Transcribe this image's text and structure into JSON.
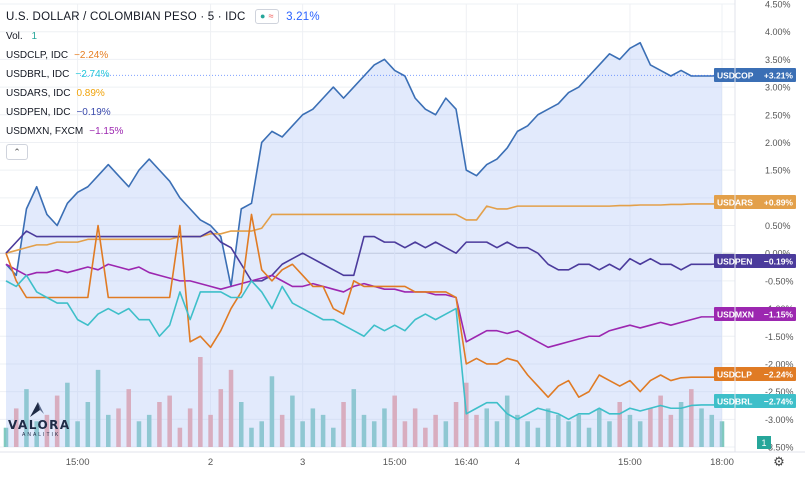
{
  "header": {
    "title": "U.S. DOLLAR / COLOMBIAN PESO · 5 · IDC",
    "change": "3.21%",
    "volume_label": "Vol.",
    "volume_value": "1"
  },
  "legend": [
    {
      "symbol": "USDCLP, IDC",
      "change": "−2.24%",
      "color": "#e67e22"
    },
    {
      "symbol": "USDBRL, IDC",
      "change": "−2.74%",
      "color": "#26c6da"
    },
    {
      "symbol": "USDARS, IDC",
      "change": "0.89%",
      "color": "#f0a30a"
    },
    {
      "symbol": "USDPEN, IDC",
      "change": "−0.19%",
      "color": "#3949ab"
    },
    {
      "symbol": "USDMXN, FXCM",
      "change": "−1.15%",
      "color": "#9c27b0"
    }
  ],
  "logo": {
    "brand": "VALORA",
    "sub": "ANALITIK"
  },
  "colors": {
    "usdcop": "#2962ff",
    "usdcop_line": "#3b6fb5",
    "usdclp": "#e07b24",
    "usdbrl": "#3ebfc9",
    "usdars": "#e3a04a",
    "usdpen": "#4b3b9c",
    "usdmxn": "#9c27b0",
    "vol_up": "#80c9bf",
    "vol_down": "#f0a1a1",
    "grid": "#eef0f4",
    "zero": "#c9ccd3"
  },
  "chart_data": {
    "type": "line",
    "title": "U.S. DOLLAR / COLOMBIAN PESO · 5 · IDC",
    "ylim": [
      -3.5,
      4.5
    ],
    "y_unit": "%",
    "y_ticks": [
      "4.50%",
      "4.00%",
      "3.50%",
      "3.00%",
      "2.50%",
      "2.00%",
      "1.50%",
      "1.00%",
      "0.50%",
      "0.00%",
      "-0.50%",
      "-1.00%",
      "-1.50%",
      "-2.00%",
      "-2.50%",
      "-3.00%",
      "-3.50%"
    ],
    "x_tick_labels": [
      "15:00",
      "2",
      "3",
      "15:00",
      "16:40",
      "4",
      "15:00",
      "18:00"
    ],
    "x": [
      0,
      1,
      2,
      3,
      4,
      5,
      6,
      7,
      8,
      9,
      10,
      11,
      12,
      13,
      14,
      15,
      16,
      17,
      18,
      19,
      20,
      21,
      22,
      23,
      24,
      25,
      26,
      27,
      28,
      29,
      30,
      31,
      32,
      33,
      34,
      35,
      36,
      37,
      38,
      39,
      40,
      41,
      42,
      43,
      44,
      45,
      46,
      47,
      48,
      49,
      50,
      51,
      52,
      53,
      54,
      55,
      56,
      57,
      58,
      59,
      60,
      61,
      62,
      63,
      64,
      65,
      66,
      67,
      68,
      69,
      70
    ],
    "series": [
      {
        "name": "USDCOP",
        "last_label": "+3.21%",
        "values": [
          -0.2,
          -0.4,
          0.8,
          1.2,
          0.7,
          0.5,
          0.9,
          1.1,
          1.2,
          1.4,
          1.6,
          1.4,
          1.2,
          1.5,
          1.7,
          1.5,
          1.3,
          1.0,
          0.8,
          0.6,
          0.5,
          0.3,
          -0.6,
          0.8,
          0.9,
          2.0,
          2.2,
          2.1,
          2.3,
          2.5,
          2.6,
          2.8,
          3.0,
          2.8,
          3.0,
          3.2,
          3.4,
          3.5,
          3.3,
          3.2,
          2.8,
          2.6,
          2.5,
          2.8,
          2.6,
          1.5,
          1.4,
          1.6,
          1.7,
          1.9,
          2.2,
          2.3,
          2.5,
          2.6,
          2.7,
          2.9,
          3.0,
          3.2,
          3.4,
          3.6,
          3.5,
          3.7,
          3.8,
          3.4,
          3.3,
          3.2,
          3.3,
          3.2,
          3.2,
          3.2,
          3.21
        ]
      },
      {
        "name": "USDARS",
        "last_label": "+0.89%",
        "values": [
          0.0,
          0.05,
          0.1,
          0.15,
          0.15,
          0.2,
          0.2,
          0.2,
          0.25,
          0.25,
          0.25,
          0.25,
          0.25,
          0.25,
          0.25,
          0.25,
          0.25,
          0.3,
          0.3,
          0.3,
          0.35,
          0.35,
          0.4,
          0.4,
          0.4,
          0.45,
          0.7,
          0.7,
          0.7,
          0.7,
          0.7,
          0.7,
          0.7,
          0.7,
          0.7,
          0.7,
          0.7,
          0.7,
          0.7,
          0.7,
          0.7,
          0.7,
          0.7,
          0.7,
          0.7,
          0.6,
          0.6,
          0.85,
          0.8,
          0.8,
          0.85,
          0.85,
          0.85,
          0.85,
          0.85,
          0.85,
          0.85,
          0.85,
          0.85,
          0.85,
          0.86,
          0.86,
          0.87,
          0.87,
          0.87,
          0.88,
          0.88,
          0.89,
          0.89,
          0.89,
          0.89
        ]
      },
      {
        "name": "USDPEN",
        "last_label": "−0.19%",
        "values": [
          0.0,
          0.2,
          0.4,
          0.3,
          0.3,
          0.3,
          0.3,
          0.3,
          0.3,
          0.3,
          0.3,
          0.3,
          0.3,
          0.3,
          0.3,
          0.3,
          0.3,
          0.3,
          0.3,
          0.3,
          0.4,
          0.2,
          0.1,
          -0.2,
          -0.5,
          -0.5,
          -0.4,
          -0.2,
          -0.1,
          0.0,
          -0.1,
          -0.2,
          -0.3,
          -0.4,
          -0.4,
          0.3,
          0.3,
          0.2,
          0.2,
          0.1,
          0.2,
          0.1,
          0.2,
          0.1,
          0.0,
          0.2,
          0.2,
          0.2,
          0.1,
          0.2,
          0.1,
          0.1,
          0.0,
          -0.2,
          -0.3,
          -0.3,
          -0.2,
          -0.2,
          -0.3,
          -0.2,
          -0.3,
          -0.1,
          -0.2,
          -0.1,
          -0.2,
          -0.2,
          -0.3,
          -0.2,
          -0.2,
          -0.2,
          -0.19
        ]
      },
      {
        "name": "USDMXN",
        "last_label": "−1.15%",
        "values": [
          -0.2,
          -0.3,
          -0.4,
          -0.35,
          -0.35,
          -0.3,
          -0.35,
          -0.3,
          -0.25,
          -0.3,
          -0.2,
          -0.25,
          -0.3,
          -0.25,
          -0.35,
          -0.4,
          -0.45,
          -0.5,
          -0.5,
          -0.55,
          -0.6,
          -0.65,
          -0.6,
          -0.55,
          -0.5,
          -0.45,
          -0.4,
          -0.5,
          -0.6,
          -0.6,
          -0.55,
          -0.6,
          -0.65,
          -0.7,
          -0.6,
          -0.55,
          -0.6,
          -0.65,
          -0.65,
          -0.7,
          -0.7,
          -0.7,
          -0.75,
          -0.75,
          -0.8,
          -1.6,
          -1.5,
          -1.4,
          -1.4,
          -1.45,
          -1.4,
          -1.5,
          -1.6,
          -1.7,
          -1.65,
          -1.6,
          -1.55,
          -1.5,
          -1.5,
          -1.4,
          -1.35,
          -1.3,
          -1.35,
          -1.3,
          -1.25,
          -1.3,
          -1.25,
          -1.2,
          -1.15,
          -1.15,
          -1.15
        ]
      },
      {
        "name": "USDCLP",
        "last_label": "−2.24%",
        "values": [
          0.0,
          -0.5,
          -0.8,
          -0.8,
          -0.8,
          -0.8,
          -0.8,
          -0.8,
          -0.8,
          0.5,
          -0.8,
          -0.8,
          -0.8,
          -0.8,
          -0.8,
          -0.8,
          -0.8,
          0.5,
          -1.6,
          -1.5,
          -1.7,
          -1.4,
          -1.0,
          -0.7,
          0.7,
          -0.3,
          -0.5,
          -0.3,
          -0.2,
          -0.4,
          -0.6,
          -0.6,
          -1.0,
          -1.1,
          -0.5,
          -0.6,
          -0.6,
          -0.6,
          -0.6,
          -0.6,
          -0.7,
          -0.7,
          -0.7,
          -0.7,
          -0.8,
          -2.0,
          -1.9,
          -2.0,
          -2.0,
          -1.9,
          -1.95,
          -2.2,
          -2.4,
          -2.6,
          -2.4,
          -2.3,
          -2.6,
          -2.5,
          -2.2,
          -2.3,
          -2.4,
          -2.3,
          -2.5,
          -2.3,
          -2.2,
          -2.3,
          -2.25,
          -2.24,
          -2.24,
          -2.24,
          -2.24
        ]
      },
      {
        "name": "USDBRL",
        "last_label": "−2.74%",
        "values": [
          -0.5,
          -0.6,
          -0.4,
          -0.7,
          -0.8,
          -0.9,
          -0.9,
          -1.2,
          -1.3,
          -1.1,
          -1.0,
          -1.1,
          -1.0,
          -1.2,
          -1.2,
          -1.5,
          -1.3,
          -0.7,
          -1.2,
          -0.7,
          -0.7,
          -0.7,
          -0.8,
          -0.8,
          -0.5,
          -0.7,
          -1.0,
          -0.6,
          -0.9,
          -1.0,
          -1.1,
          -1.2,
          -1.2,
          -1.3,
          -1.4,
          -1.5,
          -1.3,
          -1.4,
          -1.3,
          -1.4,
          -1.2,
          -1.1,
          -1.2,
          -1.1,
          -1.0,
          -2.9,
          -2.8,
          -2.7,
          -2.7,
          -2.9,
          -3.0,
          -2.9,
          -2.8,
          -2.85,
          -2.9,
          -3.0,
          -2.9,
          -2.9,
          -2.8,
          -2.9,
          -2.9,
          -2.8,
          -2.85,
          -2.8,
          -2.75,
          -2.8,
          -2.8,
          -2.75,
          -2.74,
          -2.74,
          -2.74
        ]
      }
    ],
    "volume": [
      3,
      6,
      9,
      4,
      5,
      8,
      10,
      4,
      7,
      12,
      5,
      6,
      9,
      4,
      5,
      7,
      8,
      3,
      6,
      14,
      5,
      9,
      12,
      7,
      3,
      4,
      11,
      5,
      8,
      4,
      6,
      5,
      3,
      7,
      9,
      5,
      4,
      6,
      8,
      4,
      6,
      3,
      5,
      4,
      7,
      10,
      5,
      6,
      4,
      8,
      5,
      4,
      3,
      6,
      5,
      4,
      5,
      3,
      6,
      4,
      7,
      5,
      4,
      6,
      8,
      5,
      7,
      9,
      6,
      5,
      4
    ],
    "volume_label": "1"
  }
}
